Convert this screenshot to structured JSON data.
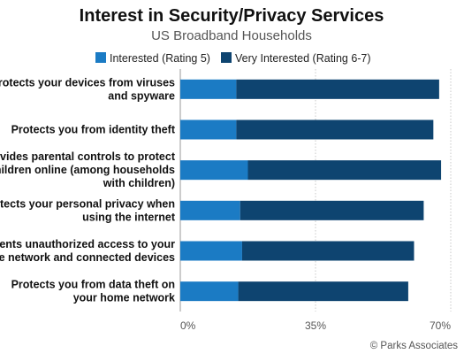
{
  "chart_data": {
    "type": "bar",
    "orientation": "horizontal",
    "stacked": true,
    "title": "Interest in Security/Privacy Services",
    "subtitle": "US Broadband Households",
    "categories": [
      "Protects your devices from viruses and spyware",
      "Protects you from identity theft",
      "Provides parental controls to protect children online (among households with children)",
      "Protects your personal privacy when using the internet",
      "Prevents unauthorized access to your home network and connected devices",
      "Protects you from data theft on your home network"
    ],
    "series": [
      {
        "name": "Interested (Rating 5)",
        "color": "#1b7bc4",
        "values": [
          14.5,
          14.5,
          17.5,
          15.5,
          16,
          15
        ]
      },
      {
        "name": "Very Interested (Rating 6-7)",
        "color": "#0e4470",
        "values": [
          52.5,
          51,
          50,
          47.5,
          44.5,
          44
        ]
      }
    ],
    "xlim": [
      0,
      70
    ],
    "xticks": [
      "0%",
      "35%",
      "70%"
    ],
    "xlabel": "",
    "ylabel": "",
    "legend_position": "top",
    "grid": true
  },
  "source": "© Parks Associates"
}
